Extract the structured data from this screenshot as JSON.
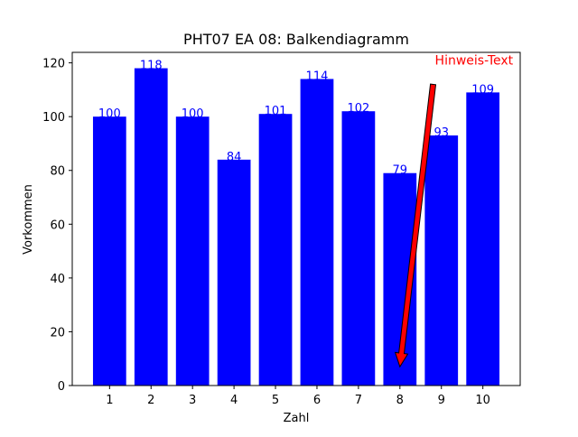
{
  "chart_data": {
    "type": "bar",
    "title": "PHT07 EA 08: Balkendiagramm",
    "xlabel": "Zahl",
    "ylabel": "Vorkommen",
    "categories": [
      "1",
      "2",
      "3",
      "4",
      "5",
      "6",
      "7",
      "8",
      "9",
      "10"
    ],
    "values": [
      100,
      118,
      100,
      84,
      101,
      114,
      102,
      79,
      93,
      109
    ],
    "value_labels": [
      "100",
      "118",
      "100",
      "84",
      "101",
      "114",
      "102",
      "79",
      "93",
      "109"
    ],
    "ylim": [
      0,
      123.9
    ],
    "yticks": [
      0,
      20,
      40,
      60,
      80,
      100,
      120
    ],
    "ytick_labels": [
      "0",
      "20",
      "40",
      "60",
      "80",
      "100",
      "120"
    ],
    "grid": false,
    "bar_color": "#0000ff",
    "label_color": "#0000ff",
    "annotation": {
      "text": "Hinweis-Text",
      "color": "#ff0000",
      "arrow_color": "#ff0000",
      "arrow_from": {
        "x": 8.8,
        "y": 112
      },
      "arrow_to": {
        "x": 8.0,
        "y": 7
      }
    }
  }
}
